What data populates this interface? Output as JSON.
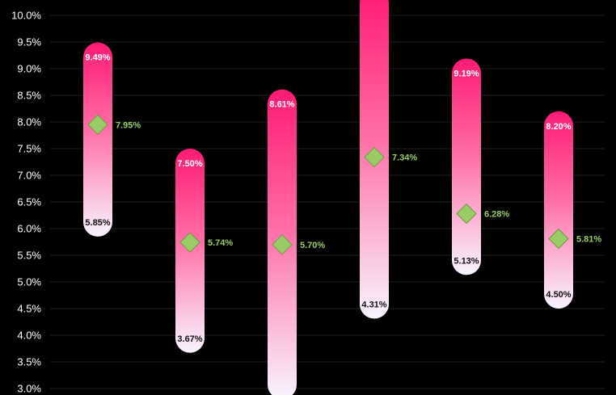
{
  "chart_data": {
    "type": "range-bar",
    "y_ticks": [
      "3.0%",
      "3.5%",
      "4.0%",
      "4.5%",
      "5.0%",
      "5.5%",
      "6.0%",
      "6.5%",
      "7.0%",
      "7.5%",
      "8.0%",
      "8.5%",
      "9.0%",
      "9.5%",
      "10.0%"
    ],
    "ylim": [
      3.0,
      10.0
    ],
    "grid": true,
    "series": [
      {
        "low": 5.85,
        "high": 9.49,
        "mid": 7.95,
        "low_label": "5.85%",
        "high_label": "9.49%",
        "mid_label": "7.95%"
      },
      {
        "low": 3.67,
        "high": 7.5,
        "mid": 5.74,
        "low_label": "3.67%",
        "high_label": "7.50%",
        "mid_label": "5.74%"
      },
      {
        "low": 2.8,
        "high": 8.61,
        "mid": 5.7,
        "low_label": "",
        "high_label": "8.61%",
        "mid_label": "5.70%"
      },
      {
        "low": 4.31,
        "high": 10.5,
        "mid": 7.34,
        "low_label": "4.31%",
        "high_label": "",
        "mid_label": "7.34%"
      },
      {
        "low": 5.13,
        "high": 9.19,
        "mid": 6.28,
        "low_label": "5.13%",
        "high_label": "9.19%",
        "mid_label": "6.28%"
      },
      {
        "low": 4.5,
        "high": 8.2,
        "mid": 5.81,
        "low_label": "4.50%",
        "high_label": "8.20%",
        "mid_label": "5.81%"
      }
    ],
    "colors": {
      "background": "#000000",
      "bar_top": "#ff1a75",
      "bar_bottom": "#f8f4ff",
      "marker_fill": "#99cc66",
      "marker_stroke": "#6f9a3f",
      "mid_label": "#99cc66",
      "low_label": "#111111",
      "high_label": "#ffffff",
      "tick_label": "#ffffff",
      "grid": "#1f1f1f"
    },
    "marker": "diamond"
  }
}
